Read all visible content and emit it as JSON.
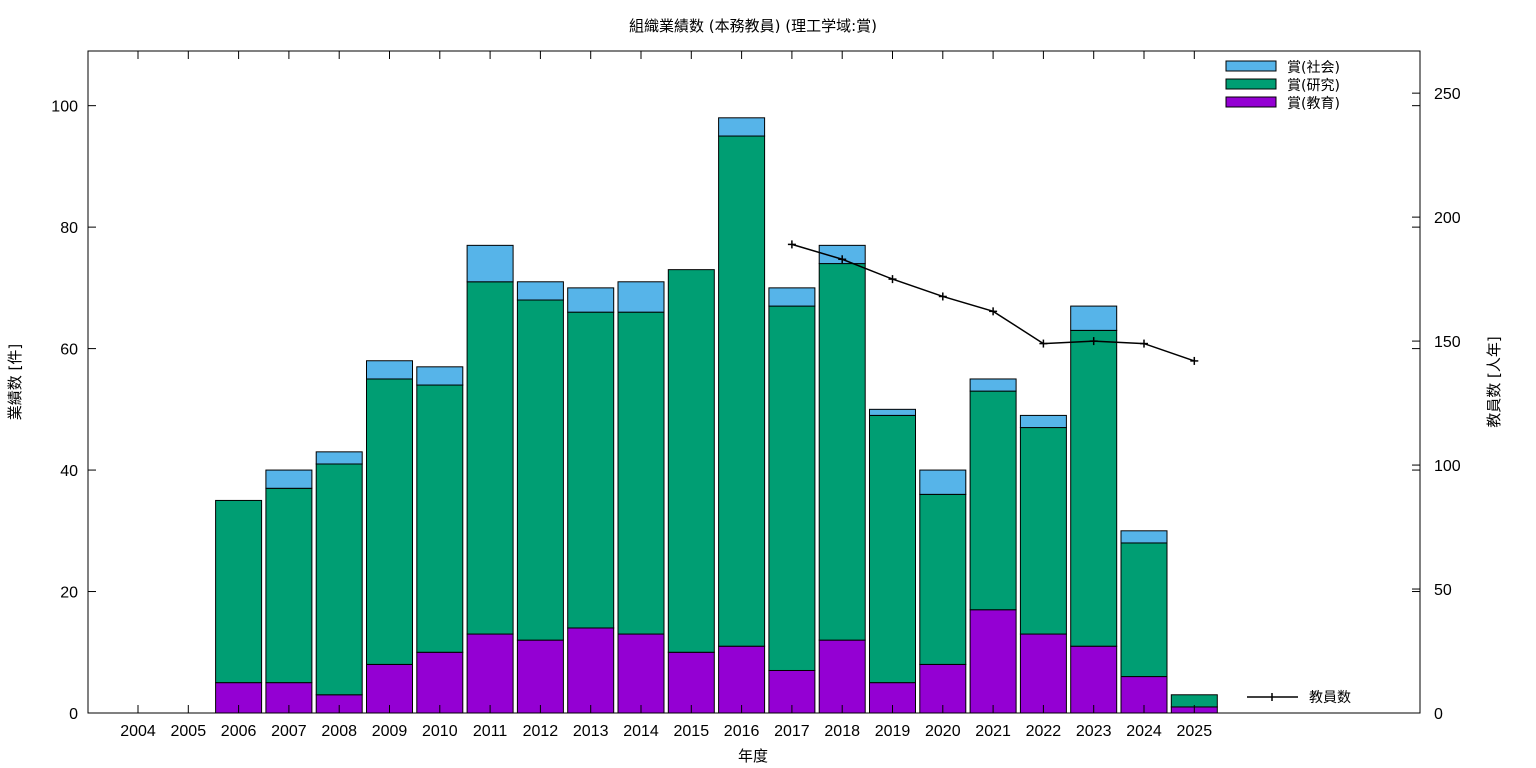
{
  "chart_data": {
    "type": "bar",
    "stacked": true,
    "title": "組織業績数 (本務教員) (理工学域:賞)",
    "xlabel": "年度",
    "ylabel": "業績数 [件]",
    "y2label": "教員数 [人年]",
    "categories": [
      "2004",
      "2005",
      "2006",
      "2007",
      "2008",
      "2009",
      "2010",
      "2011",
      "2012",
      "2013",
      "2014",
      "2015",
      "2016",
      "2017",
      "2018",
      "2019",
      "2020",
      "2021",
      "2022",
      "2023",
      "2024",
      "2025"
    ],
    "ylim": [
      0,
      109
    ],
    "y2lim": [
      0,
      267
    ],
    "yticks": [
      0,
      20,
      40,
      60,
      80,
      100
    ],
    "y2ticks": [
      0,
      50,
      100,
      150,
      200,
      250
    ],
    "series": [
      {
        "name": "賞(教育)",
        "color": "#9400d3",
        "values": [
          0,
          0,
          5,
          5,
          3,
          8,
          10,
          13,
          12,
          14,
          13,
          10,
          11,
          7,
          12,
          5,
          8,
          17,
          13,
          11,
          6,
          1
        ]
      },
      {
        "name": "賞(研究)",
        "color": "#009e73",
        "values": [
          0,
          0,
          30,
          32,
          38,
          47,
          44,
          58,
          56,
          52,
          53,
          63,
          84,
          60,
          62,
          44,
          28,
          36,
          34,
          52,
          22,
          2
        ]
      },
      {
        "name": "賞(社会)",
        "color": "#56b4e9",
        "values": [
          0,
          0,
          0,
          3,
          2,
          3,
          3,
          6,
          3,
          4,
          5,
          0,
          3,
          3,
          3,
          1,
          4,
          2,
          2,
          4,
          2,
          0
        ]
      }
    ],
    "line": {
      "name": "教員数",
      "axis": "y2",
      "color": "#000000",
      "x": [
        "2017",
        "2018",
        "2019",
        "2020",
        "2021",
        "2022",
        "2023",
        "2024",
        "2025"
      ],
      "values": [
        189,
        183,
        175,
        168,
        162,
        149,
        150,
        149,
        142
      ]
    },
    "legend": {
      "bars_position": "top-right",
      "line_position": "bottom-right"
    },
    "grid": false
  }
}
